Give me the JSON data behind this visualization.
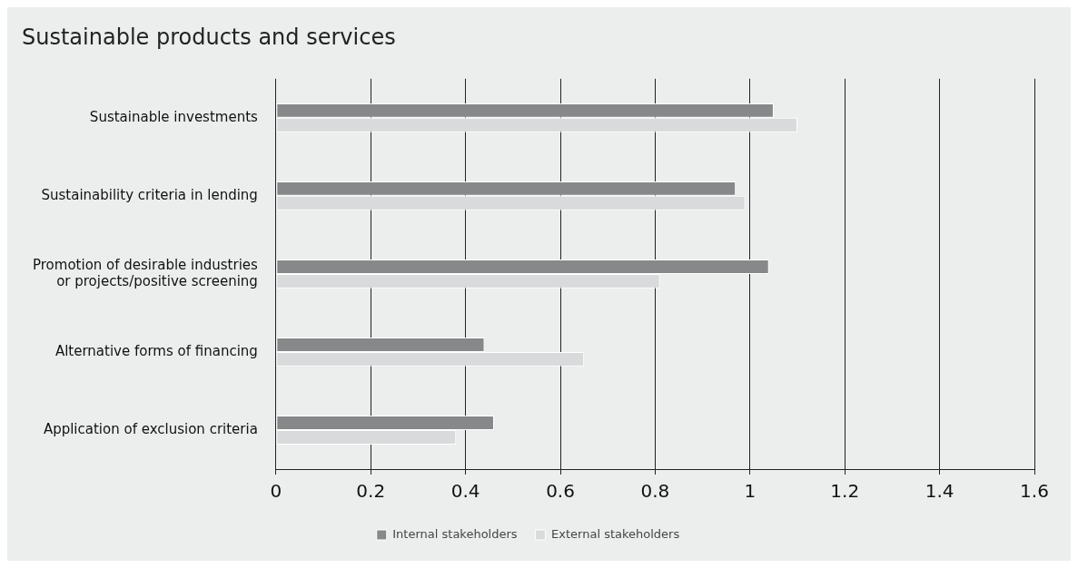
{
  "chart_data": {
    "type": "bar",
    "orientation": "horizontal",
    "title": "Sustainable products and services",
    "categories": [
      "Sustainable investments",
      "Sustainability criteria in lending",
      "Promotion of desirable industries or projects/positive screening",
      "Alternative forms of financing",
      "Application of exclusion criteria"
    ],
    "series": [
      {
        "name": "Internal stakeholders",
        "color": "#878889",
        "values": [
          1.05,
          0.97,
          1.04,
          0.44,
          0.46
        ]
      },
      {
        "name": "External stakeholders",
        "color": "#d9dadb",
        "values": [
          1.1,
          0.99,
          0.81,
          0.65,
          0.38
        ]
      }
    ],
    "xlim": [
      0,
      1.6
    ],
    "xticks": [
      0,
      0.2,
      0.4,
      0.6,
      0.8,
      1,
      1.2,
      1.4,
      1.6
    ],
    "grid": "x",
    "legend": "bottom"
  }
}
